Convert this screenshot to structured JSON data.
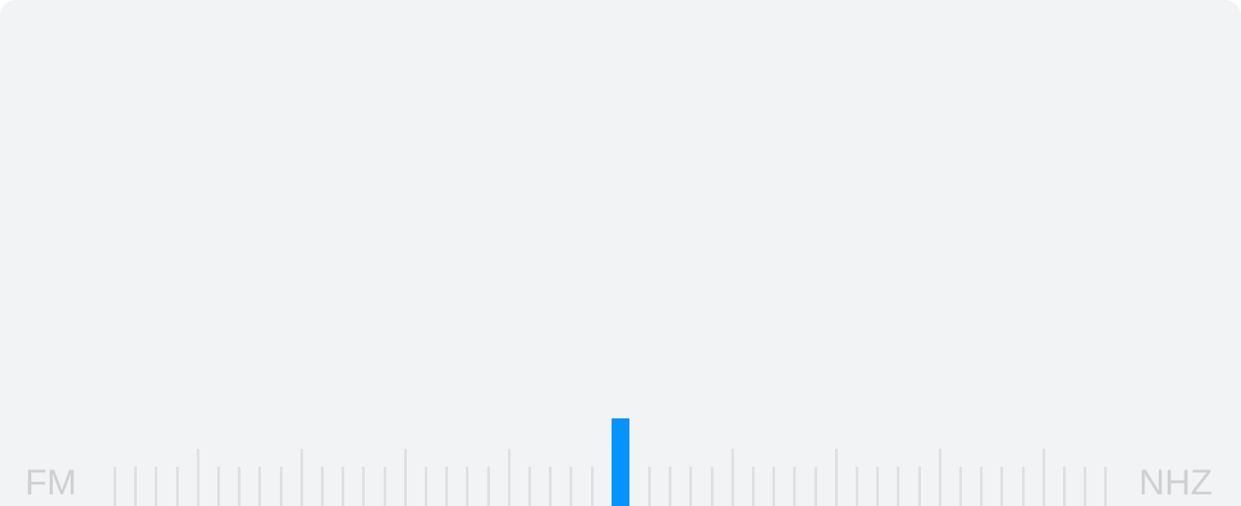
{
  "tuner": {
    "band_label": "FM",
    "unit_label": "NHZ",
    "needle_color": "#0593ff",
    "tick_color": "#dfe0e2",
    "label_color": "#cfd0d3",
    "background_color": "#f2f3f5"
  }
}
